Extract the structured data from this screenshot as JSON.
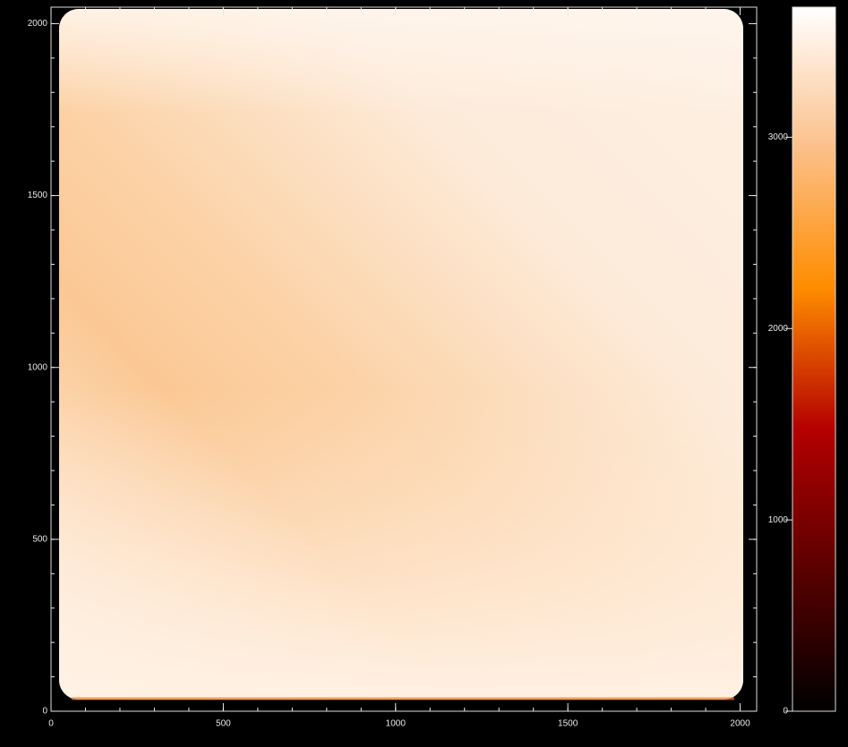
{
  "chart_data": {
    "type": "image",
    "xlim": [
      0,
      2048
    ],
    "ylim": [
      0,
      2048
    ],
    "xticks": [
      0,
      500,
      1000,
      1500,
      2000
    ],
    "yticks": [
      0,
      500,
      1000,
      1500,
      2000
    ],
    "minor_tick_step": 100,
    "colorbar": {
      "lim": [
        0,
        3680
      ],
      "ticks": [
        0,
        1000,
        2000,
        3000
      ],
      "colormap": [
        "#000000",
        "#5a0000",
        "#b40000",
        "#ff8c00",
        "#fbc08a",
        "#ffffff"
      ]
    }
  }
}
